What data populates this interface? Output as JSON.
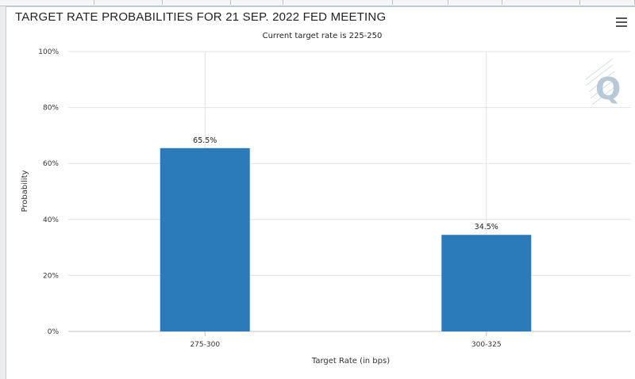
{
  "colors": {
    "bar": "#2b7bba",
    "grid": "#e3e3e3",
    "axis": "#c0c0c0",
    "watermark": "#b8c8d6"
  },
  "icons": {
    "menu": "hamburger-menu-icon",
    "watermark": "q-logo-watermark"
  },
  "watermark_text": "Q",
  "chart_data": {
    "type": "bar",
    "title": "TARGET RATE PROBABILITIES FOR 21 SEP. 2022 FED MEETING",
    "subtitle": "Current target rate is 225-250",
    "xlabel": "Target Rate (in bps)",
    "ylabel": "Probability",
    "categories": [
      "275-300",
      "300-325"
    ],
    "values": [
      65.5,
      34.5
    ],
    "data_labels": [
      "65.5%",
      "34.5%"
    ],
    "ylim": [
      0,
      100
    ],
    "yticks": [
      0,
      20,
      40,
      60,
      80,
      100
    ],
    "ytick_labels": [
      "0%",
      "20%",
      "40%",
      "60%",
      "80%",
      "100%"
    ],
    "grid": true,
    "legend": "none"
  }
}
